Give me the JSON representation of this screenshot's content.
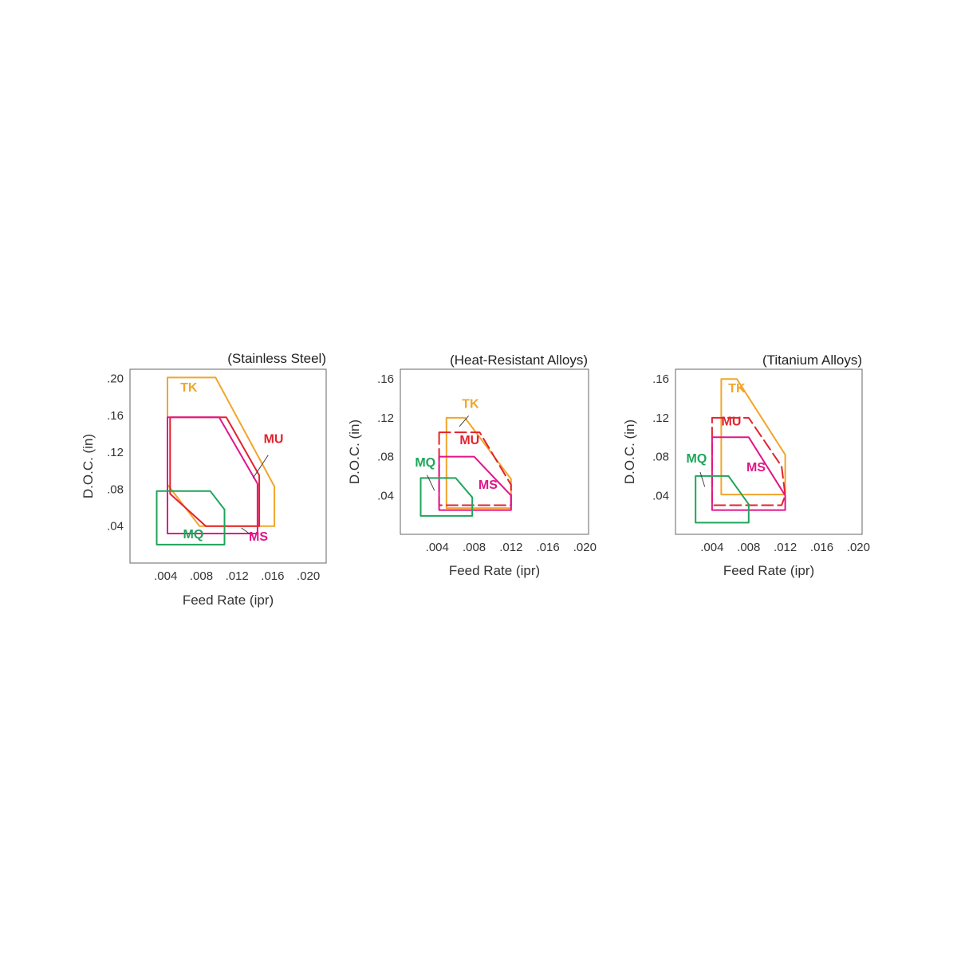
{
  "colors": {
    "TK": "#f2a52a",
    "MU": "#e2232e",
    "MS": "#e0168a",
    "MQ": "#1fa55a",
    "frame": "#666666"
  },
  "chart_data": [
    {
      "type": "area",
      "title": "(Stainless Steel)",
      "xlabel": "Feed Rate (ipr)",
      "ylabel": "D.O.C. (in)",
      "xlim": [
        0.0,
        0.022
      ],
      "ylim": [
        0.0,
        0.21
      ],
      "xticks": [
        ".004",
        ".008",
        ".012",
        ".016",
        ".020"
      ],
      "yticks": [
        ".04",
        ".08",
        ".12",
        ".16",
        ".20"
      ],
      "grid": false,
      "series": [
        {
          "name": "TK",
          "dashed": false,
          "points": [
            [
              0.0042,
              0.201
            ],
            [
              0.0096,
              0.201
            ],
            [
              0.0162,
              0.083
            ],
            [
              0.0162,
              0.04
            ],
            [
              0.0078,
              0.04
            ],
            [
              0.0042,
              0.085
            ]
          ]
        },
        {
          "name": "MU",
          "dashed": false,
          "points": [
            [
              0.0045,
              0.158
            ],
            [
              0.0108,
              0.158
            ],
            [
              0.0145,
              0.095
            ],
            [
              0.0145,
              0.04
            ],
            [
              0.0085,
              0.04
            ],
            [
              0.0045,
              0.075
            ]
          ]
        },
        {
          "name": "MS",
          "dashed": false,
          "points": [
            [
              0.0042,
              0.158
            ],
            [
              0.01,
              0.158
            ],
            [
              0.0143,
              0.086
            ],
            [
              0.0143,
              0.032
            ],
            [
              0.0042,
              0.032
            ]
          ]
        },
        {
          "name": "MQ",
          "dashed": false,
          "points": [
            [
              0.003,
              0.078
            ],
            [
              0.009,
              0.078
            ],
            [
              0.0106,
              0.058
            ],
            [
              0.0106,
              0.02
            ],
            [
              0.003,
              0.02
            ]
          ]
        }
      ],
      "labels": [
        {
          "text": "TK",
          "series": "TK",
          "x": 0.0066,
          "y": 0.186
        },
        {
          "text": "MU",
          "series": "MU",
          "x": 0.0161,
          "y": 0.13
        },
        {
          "text": "MQ",
          "series": "MQ",
          "x": 0.0071,
          "y": 0.027
        },
        {
          "text": "MS",
          "series": "MS",
          "x": 0.0144,
          "y": 0.024
        }
      ],
      "leaders": [
        {
          "from": [
            0.0155,
            0.117
          ],
          "to": [
            0.0138,
            0.092
          ]
        },
        {
          "from": [
            0.0138,
            0.029
          ],
          "to": [
            0.0125,
            0.038
          ]
        }
      ]
    },
    {
      "type": "area",
      "title": "(Heat-Resistant Alloys)",
      "xlabel": "Feed Rate (ipr)",
      "ylabel": "D.O.C. (in)",
      "xlim": [
        0.0,
        0.0204
      ],
      "ylim": [
        0.0,
        0.17
      ],
      "xticks": [
        ".004",
        ".008",
        ".012",
        ".016",
        ".020"
      ],
      "yticks": [
        ".04",
        ".08",
        ".12",
        ".16"
      ],
      "grid": false,
      "series": [
        {
          "name": "TK",
          "dashed": false,
          "points": [
            [
              0.005,
              0.12
            ],
            [
              0.007,
              0.12
            ],
            [
              0.012,
              0.057
            ],
            [
              0.012,
              0.027
            ],
            [
              0.005,
              0.027
            ]
          ]
        },
        {
          "name": "MU",
          "dashed": true,
          "points": [
            [
              0.0042,
              0.105
            ],
            [
              0.0086,
              0.105
            ],
            [
              0.012,
              0.051
            ],
            [
              0.012,
              0.03
            ],
            [
              0.0042,
              0.03
            ]
          ]
        },
        {
          "name": "MS",
          "dashed": false,
          "points": [
            [
              0.0042,
              0.08
            ],
            [
              0.008,
              0.08
            ],
            [
              0.012,
              0.04
            ],
            [
              0.012,
              0.025
            ],
            [
              0.0042,
              0.025
            ]
          ]
        },
        {
          "name": "MQ",
          "dashed": false,
          "points": [
            [
              0.0022,
              0.058
            ],
            [
              0.006,
              0.058
            ],
            [
              0.0078,
              0.038
            ],
            [
              0.0078,
              0.019
            ],
            [
              0.0022,
              0.019
            ]
          ]
        }
      ],
      "labels": [
        {
          "text": "TK",
          "series": "TK",
          "x": 0.0076,
          "y": 0.13
        },
        {
          "text": "MU",
          "series": "MU",
          "x": 0.0075,
          "y": 0.093
        },
        {
          "text": "MQ",
          "series": "MQ",
          "x": 0.0027,
          "y": 0.07
        },
        {
          "text": "MS",
          "series": "MS",
          "x": 0.0095,
          "y": 0.047
        }
      ],
      "leaders": [
        {
          "from": [
            0.0074,
            0.122
          ],
          "to": [
            0.0064,
            0.111
          ]
        },
        {
          "from": [
            0.0029,
            0.061
          ],
          "to": [
            0.0037,
            0.045
          ]
        }
      ]
    },
    {
      "type": "area",
      "title": "(Titanium Alloys)",
      "xlabel": "Feed Rate (ipr)",
      "ylabel": "D.O.C. (in)",
      "xlim": [
        0.0,
        0.0204
      ],
      "ylim": [
        0.0,
        0.17
      ],
      "xticks": [
        ".004",
        ".008",
        ".012",
        ".016",
        ".020"
      ],
      "yticks": [
        ".04",
        ".08",
        ".12",
        ".16"
      ],
      "grid": false,
      "series": [
        {
          "name": "TK",
          "dashed": false,
          "points": [
            [
              0.005,
              0.16
            ],
            [
              0.0067,
              0.16
            ],
            [
              0.012,
              0.082
            ],
            [
              0.012,
              0.041
            ],
            [
              0.005,
              0.041
            ]
          ]
        },
        {
          "name": "MU",
          "dashed": true,
          "points": [
            [
              0.004,
              0.12
            ],
            [
              0.008,
              0.12
            ],
            [
              0.0116,
              0.07
            ],
            [
              0.012,
              0.04
            ],
            [
              0.0116,
              0.03
            ],
            [
              0.004,
              0.03
            ]
          ]
        },
        {
          "name": "MS",
          "dashed": false,
          "points": [
            [
              0.004,
              0.1
            ],
            [
              0.008,
              0.1
            ],
            [
              0.012,
              0.04
            ],
            [
              0.012,
              0.025
            ],
            [
              0.004,
              0.025
            ]
          ]
        },
        {
          "name": "MQ",
          "dashed": false,
          "points": [
            [
              0.0022,
              0.06
            ],
            [
              0.0058,
              0.06
            ],
            [
              0.008,
              0.031
            ],
            [
              0.008,
              0.012
            ],
            [
              0.0022,
              0.012
            ]
          ]
        }
      ],
      "labels": [
        {
          "text": "TK",
          "series": "TK",
          "x": 0.0067,
          "y": 0.146
        },
        {
          "text": "MU",
          "series": "MU",
          "x": 0.0061,
          "y": 0.112
        },
        {
          "text": "MQ",
          "series": "MQ",
          "x": 0.0023,
          "y": 0.074
        },
        {
          "text": "MS",
          "series": "MS",
          "x": 0.0088,
          "y": 0.065
        }
      ],
      "leaders": [
        {
          "from": [
            0.0027,
            0.064
          ],
          "to": [
            0.0032,
            0.049
          ]
        }
      ]
    }
  ]
}
